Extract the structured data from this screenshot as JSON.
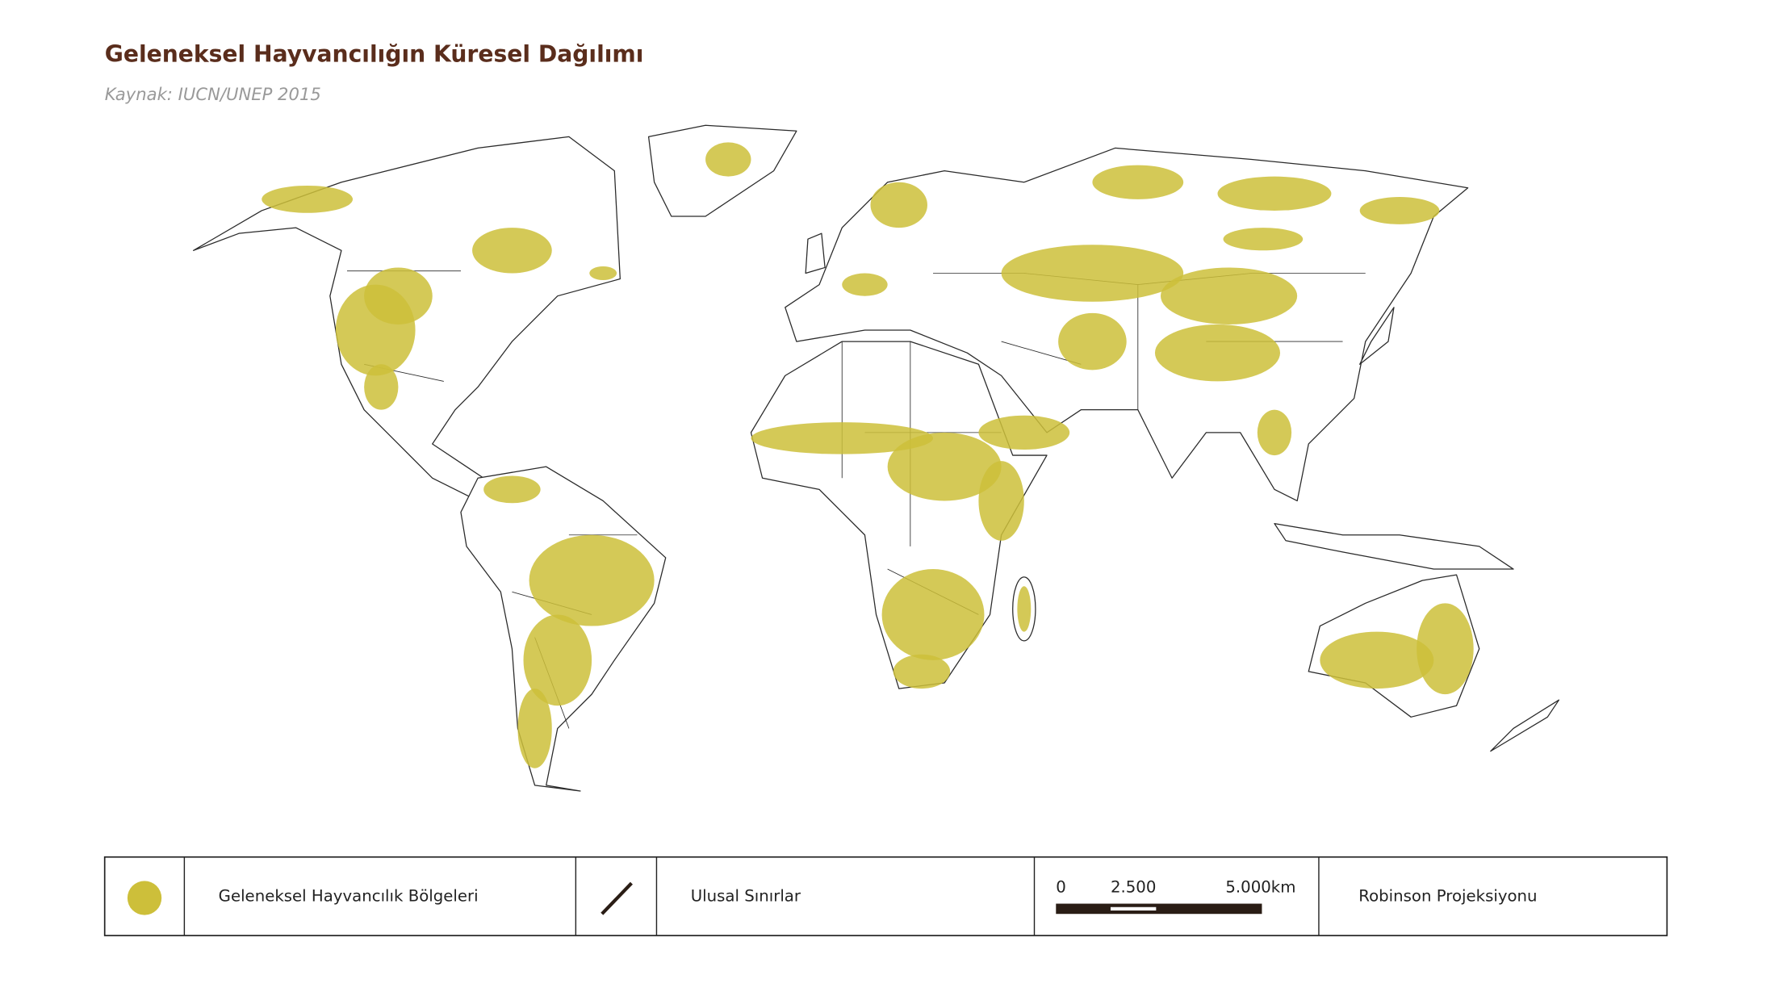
{
  "title": "Geleneksel Hayvancılığın Küresel Dağılımı",
  "source": "Kaynak: IUCN/UNEP 2015",
  "legend": {
    "regions": "Geleneksel Hayvancılık Bölgeleri",
    "borders": "Ulusal Sınırlar",
    "scale": [
      "0",
      "2.500",
      "5.000km"
    ],
    "projection": "Robinson Projeksiyonu"
  }
}
